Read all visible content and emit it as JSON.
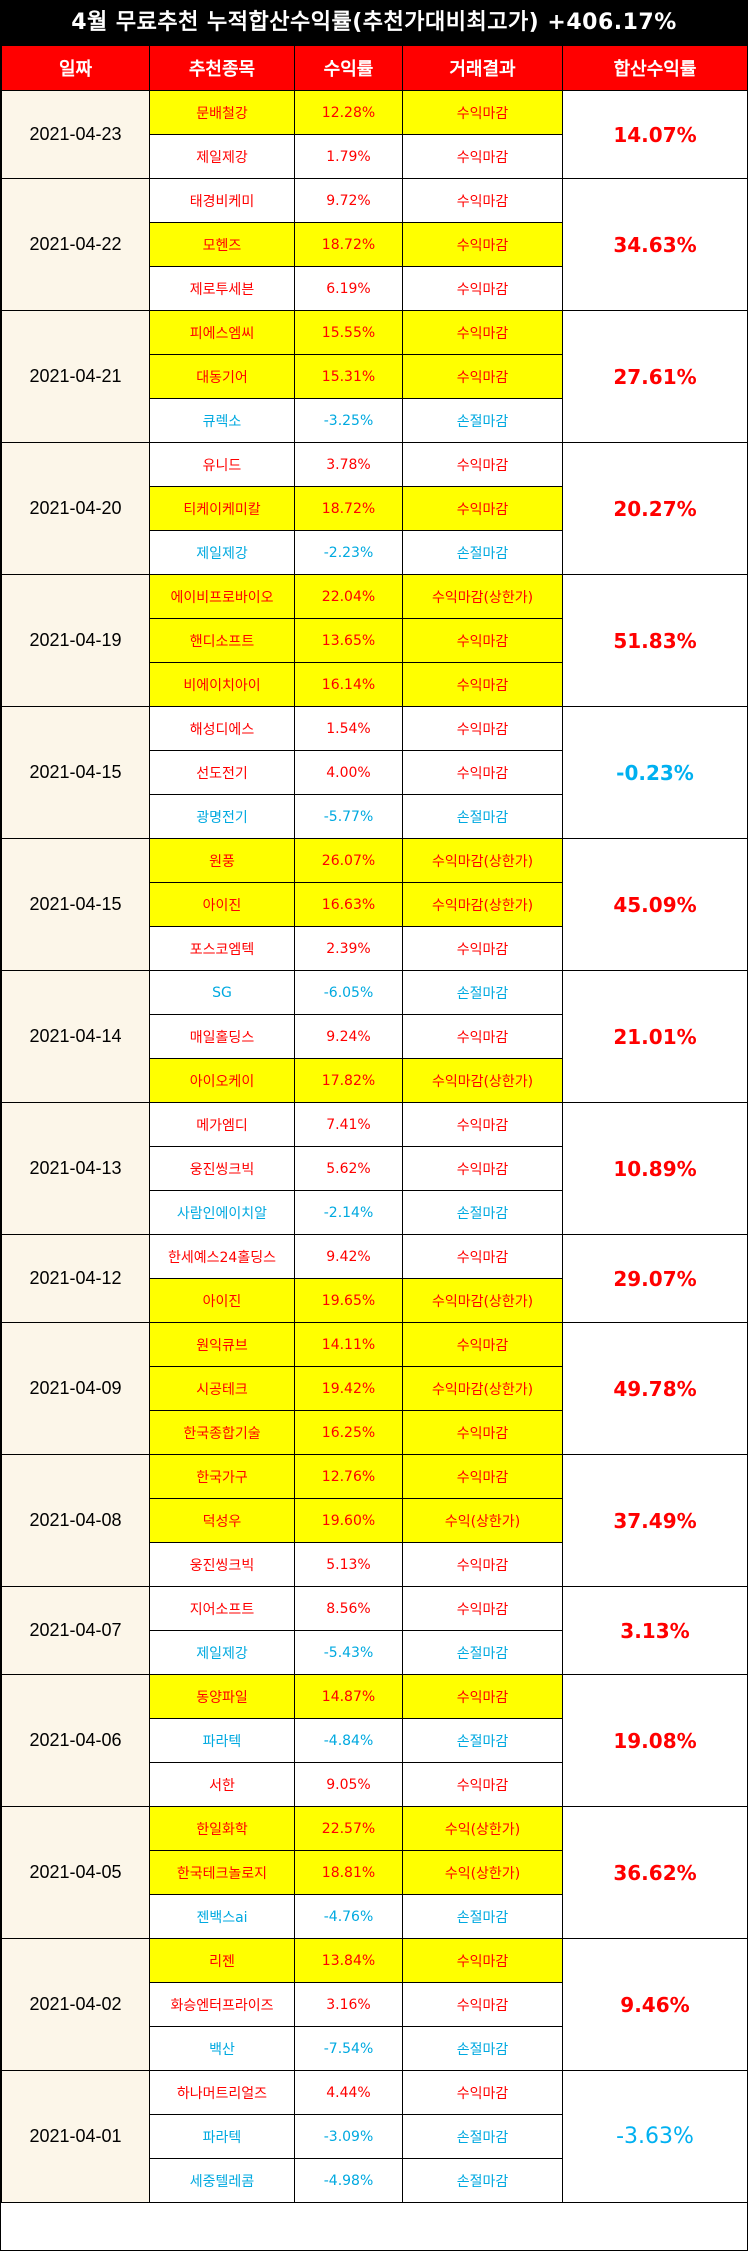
{
  "title": "4월 무료추천 누적합산수익률(추천가대비최고가) +406.17%",
  "headers": [
    "일짜",
    "추천종목",
    "수익률",
    "거래결과",
    "합산수익률"
  ],
  "colors": {
    "header_bg": "#ff0000",
    "highlight": "#ffff00",
    "positive": "#ff0000",
    "negative": "#00a9e0",
    "date_bg": "#fcf6e9"
  },
  "groups": [
    {
      "date": "2021-04-23",
      "total": "14.07%",
      "total_negative": false,
      "rows": [
        {
          "stock": "문배철강",
          "return": "12.28%",
          "result": "수익마감",
          "highlight": true,
          "negative": false
        },
        {
          "stock": "제일제강",
          "return": "1.79%",
          "result": "수익마감",
          "highlight": false,
          "negative": false
        }
      ]
    },
    {
      "date": "2021-04-22",
      "total": "34.63%",
      "total_negative": false,
      "rows": [
        {
          "stock": "태경비케미",
          "return": "9.72%",
          "result": "수익마감",
          "highlight": false,
          "negative": false
        },
        {
          "stock": "모헨즈",
          "return": "18.72%",
          "result": "수익마감",
          "highlight": true,
          "negative": false
        },
        {
          "stock": "제로투세븐",
          "return": "6.19%",
          "result": "수익마감",
          "highlight": false,
          "negative": false
        }
      ]
    },
    {
      "date": "2021-04-21",
      "total": "27.61%",
      "total_negative": false,
      "rows": [
        {
          "stock": "피에스엠씨",
          "return": "15.55%",
          "result": "수익마감",
          "highlight": true,
          "negative": false
        },
        {
          "stock": "대동기어",
          "return": "15.31%",
          "result": "수익마감",
          "highlight": true,
          "negative": false
        },
        {
          "stock": "큐렉소",
          "return": "-3.25%",
          "result": "손절마감",
          "highlight": false,
          "negative": true
        }
      ]
    },
    {
      "date": "2021-04-20",
      "total": "20.27%",
      "total_negative": false,
      "rows": [
        {
          "stock": "유니드",
          "return": "3.78%",
          "result": "수익마감",
          "highlight": false,
          "negative": false
        },
        {
          "stock": "티케이케미칼",
          "return": "18.72%",
          "result": "수익마감",
          "highlight": true,
          "negative": false
        },
        {
          "stock": "제일제강",
          "return": "-2.23%",
          "result": "손절마감",
          "highlight": false,
          "negative": true
        }
      ]
    },
    {
      "date": "2021-04-19",
      "total": "51.83%",
      "total_negative": false,
      "rows": [
        {
          "stock": "에이비프로바이오",
          "return": "22.04%",
          "result": "수익마감(상한가)",
          "highlight": true,
          "negative": false
        },
        {
          "stock": "핸디소프트",
          "return": "13.65%",
          "result": "수익마감",
          "highlight": true,
          "negative": false
        },
        {
          "stock": "비에이치아이",
          "return": "16.14%",
          "result": "수익마감",
          "highlight": true,
          "negative": false
        }
      ]
    },
    {
      "date": "2021-04-15",
      "total": "-0.23%",
      "total_negative": true,
      "rows": [
        {
          "stock": "해성디에스",
          "return": "1.54%",
          "result": "수익마감",
          "highlight": false,
          "negative": false
        },
        {
          "stock": "선도전기",
          "return": "4.00%",
          "result": "수익마감",
          "highlight": false,
          "negative": false
        },
        {
          "stock": "광명전기",
          "return": "-5.77%",
          "result": "손절마감",
          "highlight": false,
          "negative": true
        }
      ]
    },
    {
      "date": "2021-04-15",
      "total": "45.09%",
      "total_negative": false,
      "rows": [
        {
          "stock": "원풍",
          "return": "26.07%",
          "result": "수익마감(상한가)",
          "highlight": true,
          "negative": false
        },
        {
          "stock": "아이진",
          "return": "16.63%",
          "result": "수익마감(상한가)",
          "highlight": true,
          "negative": false
        },
        {
          "stock": "포스코엠텍",
          "return": "2.39%",
          "result": "수익마감",
          "highlight": false,
          "negative": false
        }
      ]
    },
    {
      "date": "2021-04-14",
      "total": "21.01%",
      "total_negative": false,
      "rows": [
        {
          "stock": "SG",
          "return": "-6.05%",
          "result": "손절마감",
          "highlight": false,
          "negative": true
        },
        {
          "stock": "매일홀딩스",
          "return": "9.24%",
          "result": "수익마감",
          "highlight": false,
          "negative": false
        },
        {
          "stock": "아이오케이",
          "return": "17.82%",
          "result": "수익마감(상한가)",
          "highlight": true,
          "negative": false
        }
      ]
    },
    {
      "date": "2021-04-13",
      "total": "10.89%",
      "total_negative": false,
      "rows": [
        {
          "stock": "메가엠디",
          "return": "7.41%",
          "result": "수익마감",
          "highlight": false,
          "negative": false
        },
        {
          "stock": "웅진씽크빅",
          "return": "5.62%",
          "result": "수익마감",
          "highlight": false,
          "negative": false
        },
        {
          "stock": "사람인에이치알",
          "return": "-2.14%",
          "result": "손절마감",
          "highlight": false,
          "negative": true
        }
      ]
    },
    {
      "date": "2021-04-12",
      "total": "29.07%",
      "total_negative": false,
      "rows": [
        {
          "stock": "한세예스24홀딩스",
          "return": "9.42%",
          "result": "수익마감",
          "highlight": false,
          "negative": false
        },
        {
          "stock": "아이진",
          "return": "19.65%",
          "result": "수익마감(상한가)",
          "highlight": true,
          "negative": false
        }
      ]
    },
    {
      "date": "2021-04-09",
      "total": "49.78%",
      "total_negative": false,
      "rows": [
        {
          "stock": "원익큐브",
          "return": "14.11%",
          "result": "수익마감",
          "highlight": true,
          "negative": false
        },
        {
          "stock": "시공테크",
          "return": "19.42%",
          "result": "수익마감(상한가)",
          "highlight": true,
          "negative": false
        },
        {
          "stock": "한국종합기술",
          "return": "16.25%",
          "result": "수익마감",
          "highlight": true,
          "negative": false
        }
      ]
    },
    {
      "date": "2021-04-08",
      "total": "37.49%",
      "total_negative": false,
      "rows": [
        {
          "stock": "한국가구",
          "return": "12.76%",
          "result": "수익마감",
          "highlight": true,
          "negative": false
        },
        {
          "stock": "덕성우",
          "return": "19.60%",
          "result": "수익(상한가)",
          "highlight": true,
          "negative": false
        },
        {
          "stock": "웅진씽크빅",
          "return": "5.13%",
          "result": "수익마감",
          "highlight": false,
          "negative": false
        }
      ]
    },
    {
      "date": "2021-04-07",
      "total": "3.13%",
      "total_negative": false,
      "rows": [
        {
          "stock": "지어소프트",
          "return": "8.56%",
          "result": "수익마감",
          "highlight": false,
          "negative": false
        },
        {
          "stock": "제일제강",
          "return": "-5.43%",
          "result": "손절마감",
          "highlight": false,
          "negative": true
        }
      ]
    },
    {
      "date": "2021-04-06",
      "total": "19.08%",
      "total_negative": false,
      "rows": [
        {
          "stock": "동양파일",
          "return": "14.87%",
          "result": "수익마감",
          "highlight": true,
          "negative": false
        },
        {
          "stock": "파라텍",
          "return": "-4.84%",
          "result": "손절마감",
          "highlight": false,
          "negative": true
        },
        {
          "stock": "서한",
          "return": "9.05%",
          "result": "수익마감",
          "highlight": false,
          "negative": false
        }
      ]
    },
    {
      "date": "2021-04-05",
      "total": "36.62%",
      "total_negative": false,
      "rows": [
        {
          "stock": "한일화학",
          "return": "22.57%",
          "result": "수익(상한가)",
          "highlight": true,
          "negative": false
        },
        {
          "stock": "한국테크놀로지",
          "return": "18.81%",
          "result": "수익(상한가)",
          "highlight": true,
          "negative": false
        },
        {
          "stock": "젠백스ai",
          "return": "-4.76%",
          "result": "손절마감",
          "highlight": false,
          "negative": true
        }
      ]
    },
    {
      "date": "2021-04-02",
      "total": "9.46%",
      "total_negative": false,
      "rows": [
        {
          "stock": "리젠",
          "return": "13.84%",
          "result": "수익마감",
          "highlight": true,
          "negative": false
        },
        {
          "stock": "화승엔터프라이즈",
          "return": "3.16%",
          "result": "수익마감",
          "highlight": false,
          "negative": false
        },
        {
          "stock": "백산",
          "return": "-7.54%",
          "result": "손절마감",
          "highlight": false,
          "negative": true
        }
      ]
    },
    {
      "date": "2021-04-01",
      "total": "-3.63%",
      "total_negative": true,
      "rows": [
        {
          "stock": "하나머트리얼즈",
          "return": "4.44%",
          "result": "수익마감",
          "highlight": false,
          "negative": false
        },
        {
          "stock": "파라텍",
          "return": "-3.09%",
          "result": "손절마감",
          "highlight": false,
          "negative": true
        },
        {
          "stock": "세중텔레콤",
          "return": "-4.98%",
          "result": "손절마감",
          "highlight": false,
          "negative": true
        }
      ]
    }
  ]
}
